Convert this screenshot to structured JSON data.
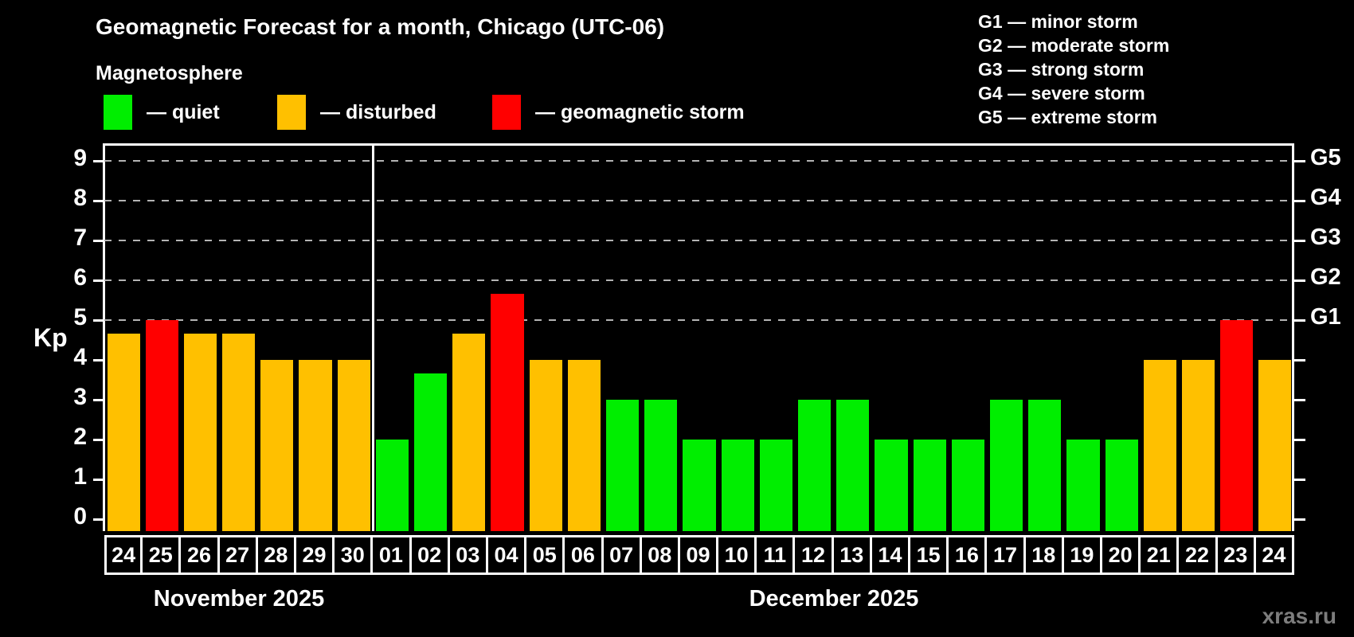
{
  "header": {
    "title": "Geomagnetic Forecast for a month, Chicago (UTC-06)",
    "subtitle": "Magnetosphere"
  },
  "legend": {
    "items": [
      {
        "label": "— quiet",
        "status": "quiet",
        "color": "#00ee00"
      },
      {
        "label": "— disturbed",
        "status": "disturbed",
        "color": "#ffc000"
      },
      {
        "label": "— geomagnetic storm",
        "status": "storm",
        "color": "#ff0000"
      }
    ]
  },
  "g_legend": {
    "items": [
      "G1 — minor storm",
      "G2 — moderate storm",
      "G3 — strong storm",
      "G4 — severe storm",
      "G5 — extreme storm"
    ]
  },
  "chart_data": {
    "type": "bar",
    "title": "Geomagnetic Forecast for a month, Chicago (UTC-06)",
    "ylabel": "Kp",
    "ylim": [
      0,
      9
    ],
    "yticks": [
      0,
      1,
      2,
      3,
      4,
      5,
      6,
      7,
      8,
      9
    ],
    "gridlines_at": [
      5,
      6,
      7,
      8,
      9
    ],
    "grid": "dashed horizontal at storm levels only",
    "legend_position": "top",
    "right_axis": [
      {
        "label": "G5",
        "kp": 9
      },
      {
        "label": "G4",
        "kp": 8
      },
      {
        "label": "G3",
        "kp": 7
      },
      {
        "label": "G2",
        "kp": 6
      },
      {
        "label": "G1",
        "kp": 5
      }
    ],
    "status_colors": {
      "quiet": "#00ee00",
      "disturbed": "#ffc000",
      "storm": "#ff0000"
    },
    "groups": [
      {
        "month": "November 2025",
        "days": [
          {
            "day": "24",
            "kp": 4.67,
            "status": "disturbed"
          },
          {
            "day": "25",
            "kp": 5.0,
            "status": "storm"
          },
          {
            "day": "26",
            "kp": 4.67,
            "status": "disturbed"
          },
          {
            "day": "27",
            "kp": 4.67,
            "status": "disturbed"
          },
          {
            "day": "28",
            "kp": 4.0,
            "status": "disturbed"
          },
          {
            "day": "29",
            "kp": 4.0,
            "status": "disturbed"
          },
          {
            "day": "30",
            "kp": 4.0,
            "status": "disturbed"
          }
        ]
      },
      {
        "month": "December 2025",
        "days": [
          {
            "day": "01",
            "kp": 2.0,
            "status": "quiet"
          },
          {
            "day": "02",
            "kp": 3.67,
            "status": "quiet"
          },
          {
            "day": "03",
            "kp": 4.67,
            "status": "disturbed"
          },
          {
            "day": "04",
            "kp": 5.67,
            "status": "storm"
          },
          {
            "day": "05",
            "kp": 4.0,
            "status": "disturbed"
          },
          {
            "day": "06",
            "kp": 4.0,
            "status": "disturbed"
          },
          {
            "day": "07",
            "kp": 3.0,
            "status": "quiet"
          },
          {
            "day": "08",
            "kp": 3.0,
            "status": "quiet"
          },
          {
            "day": "09",
            "kp": 2.0,
            "status": "quiet"
          },
          {
            "day": "10",
            "kp": 2.0,
            "status": "quiet"
          },
          {
            "day": "11",
            "kp": 2.0,
            "status": "quiet"
          },
          {
            "day": "12",
            "kp": 3.0,
            "status": "quiet"
          },
          {
            "day": "13",
            "kp": 3.0,
            "status": "quiet"
          },
          {
            "day": "14",
            "kp": 2.0,
            "status": "quiet"
          },
          {
            "day": "15",
            "kp": 2.0,
            "status": "quiet"
          },
          {
            "day": "16",
            "kp": 2.0,
            "status": "quiet"
          },
          {
            "day": "17",
            "kp": 3.0,
            "status": "quiet"
          },
          {
            "day": "18",
            "kp": 3.0,
            "status": "quiet"
          },
          {
            "day": "19",
            "kp": 2.0,
            "status": "quiet"
          },
          {
            "day": "20",
            "kp": 2.0,
            "status": "quiet"
          },
          {
            "day": "21",
            "kp": 4.0,
            "status": "disturbed"
          },
          {
            "day": "22",
            "kp": 4.0,
            "status": "disturbed"
          },
          {
            "day": "23",
            "kp": 5.0,
            "status": "storm"
          },
          {
            "day": "24",
            "kp": 4.0,
            "status": "disturbed"
          }
        ]
      }
    ]
  },
  "watermark": "xras.ru"
}
